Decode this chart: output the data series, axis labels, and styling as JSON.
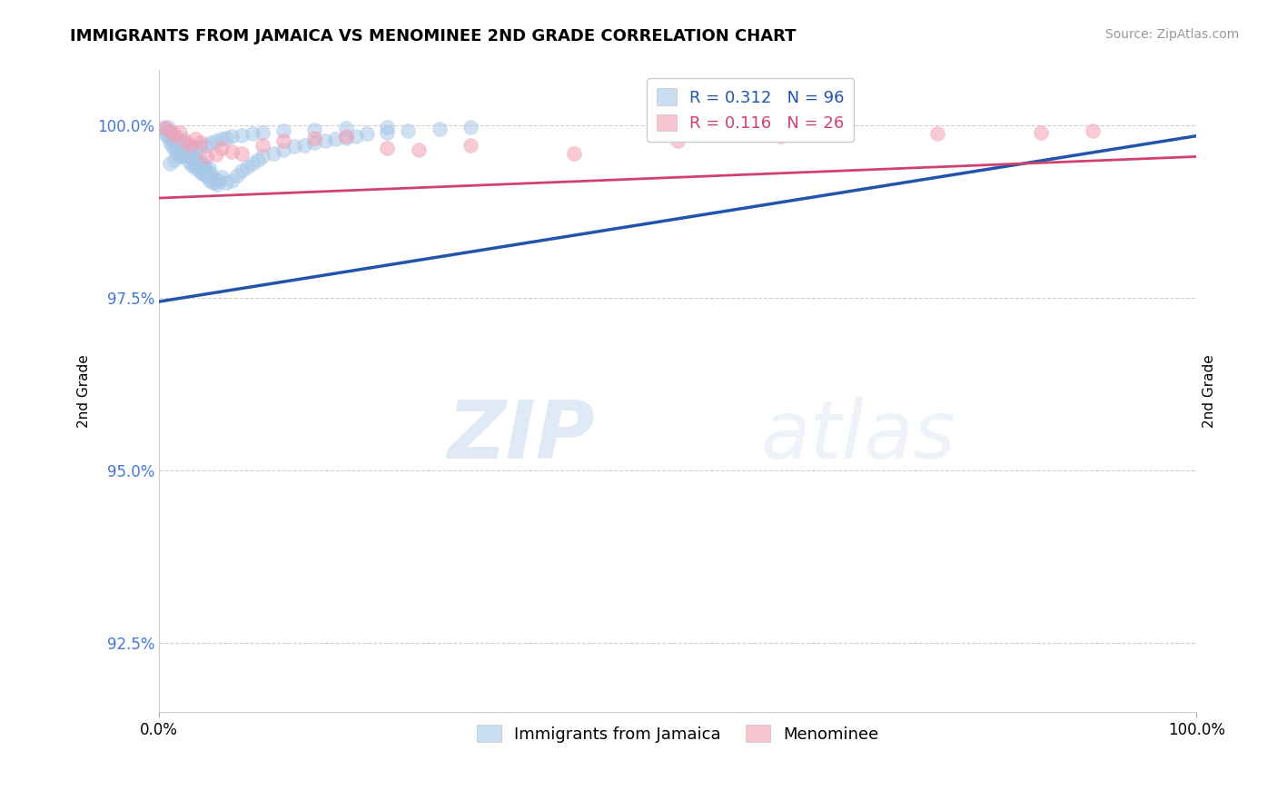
{
  "title": "IMMIGRANTS FROM JAMAICA VS MENOMINEE 2ND GRADE CORRELATION CHART",
  "source": "Source: ZipAtlas.com",
  "ylabel": "2nd Grade",
  "xlim": [
    0.0,
    1.0
  ],
  "ylim": [
    0.915,
    1.008
  ],
  "yticks": [
    0.925,
    0.95,
    0.975,
    1.0
  ],
  "ytick_labels": [
    "92.5%",
    "95.0%",
    "97.5%",
    "100.0%"
  ],
  "blue_R": 0.312,
  "blue_N": 96,
  "pink_R": 0.116,
  "pink_N": 26,
  "blue_color": "#a8c8e8",
  "pink_color": "#f4a0b5",
  "blue_line_color": "#2255aa",
  "pink_line_color": "#d04070",
  "background_color": "#ffffff",
  "watermark_zip": "ZIP",
  "watermark_atlas": "atlas",
  "blue_scatter_x": [
    0.005,
    0.006,
    0.007,
    0.008,
    0.009,
    0.01,
    0.01,
    0.011,
    0.012,
    0.013,
    0.014,
    0.015,
    0.015,
    0.016,
    0.017,
    0.018,
    0.019,
    0.02,
    0.02,
    0.021,
    0.022,
    0.023,
    0.024,
    0.025,
    0.026,
    0.027,
    0.028,
    0.029,
    0.03,
    0.031,
    0.032,
    0.033,
    0.034,
    0.035,
    0.036,
    0.037,
    0.038,
    0.039,
    0.04,
    0.041,
    0.042,
    0.043,
    0.044,
    0.045,
    0.046,
    0.047,
    0.048,
    0.049,
    0.05,
    0.052,
    0.054,
    0.056,
    0.058,
    0.06,
    0.065,
    0.07,
    0.075,
    0.08,
    0.085,
    0.09,
    0.095,
    0.1,
    0.11,
    0.12,
    0.13,
    0.14,
    0.15,
    0.16,
    0.17,
    0.18,
    0.19,
    0.2,
    0.22,
    0.24,
    0.27,
    0.3,
    0.01,
    0.015,
    0.02,
    0.025,
    0.03,
    0.035,
    0.04,
    0.045,
    0.05,
    0.055,
    0.06,
    0.065,
    0.07,
    0.08,
    0.09,
    0.1,
    0.12,
    0.15,
    0.18,
    0.22
  ],
  "blue_scatter_y": [
    0.9995,
    0.9988,
    0.9992,
    0.9985,
    0.9998,
    0.999,
    0.9975,
    0.998,
    0.9985,
    0.997,
    0.9988,
    0.9978,
    0.9965,
    0.9972,
    0.996,
    0.9975,
    0.9968,
    0.9962,
    0.998,
    0.9955,
    0.997,
    0.996,
    0.9975,
    0.9965,
    0.9958,
    0.997,
    0.9955,
    0.9948,
    0.996,
    0.9942,
    0.9955,
    0.9945,
    0.9958,
    0.9938,
    0.995,
    0.9942,
    0.9945,
    0.9935,
    0.9948,
    0.993,
    0.994,
    0.9932,
    0.9942,
    0.9928,
    0.9935,
    0.9925,
    0.9938,
    0.992,
    0.993,
    0.9918,
    0.9922,
    0.9915,
    0.992,
    0.9925,
    0.9918,
    0.992,
    0.9928,
    0.9935,
    0.994,
    0.9945,
    0.995,
    0.9955,
    0.996,
    0.9965,
    0.997,
    0.9972,
    0.9975,
    0.9978,
    0.998,
    0.9982,
    0.9985,
    0.9988,
    0.999,
    0.9992,
    0.9995,
    0.9998,
    0.9945,
    0.995,
    0.9955,
    0.996,
    0.9965,
    0.9968,
    0.997,
    0.9972,
    0.9975,
    0.9978,
    0.998,
    0.9982,
    0.9984,
    0.9986,
    0.9988,
    0.999,
    0.9992,
    0.9994,
    0.9996,
    0.9998
  ],
  "pink_scatter_x": [
    0.005,
    0.01,
    0.015,
    0.02,
    0.025,
    0.03,
    0.035,
    0.04,
    0.06,
    0.08,
    0.1,
    0.12,
    0.15,
    0.18,
    0.22,
    0.3,
    0.4,
    0.5,
    0.6,
    0.75,
    0.85,
    0.9,
    0.25,
    0.07,
    0.055,
    0.045
  ],
  "pink_scatter_y": [
    0.9998,
    0.9992,
    0.9985,
    0.999,
    0.9978,
    0.9972,
    0.998,
    0.9975,
    0.9968,
    0.996,
    0.9972,
    0.9978,
    0.9982,
    0.9985,
    0.9968,
    0.9972,
    0.996,
    0.9978,
    0.9985,
    0.9988,
    0.999,
    0.9992,
    0.9965,
    0.9962,
    0.9958,
    0.9955
  ],
  "blue_line_start_x": 0.0,
  "blue_line_start_y": 0.9745,
  "blue_line_end_x": 1.0,
  "blue_line_end_y": 0.9985,
  "pink_line_start_x": 0.0,
  "pink_line_start_y": 0.9895,
  "pink_line_end_x": 1.0,
  "pink_line_end_y": 0.9955
}
